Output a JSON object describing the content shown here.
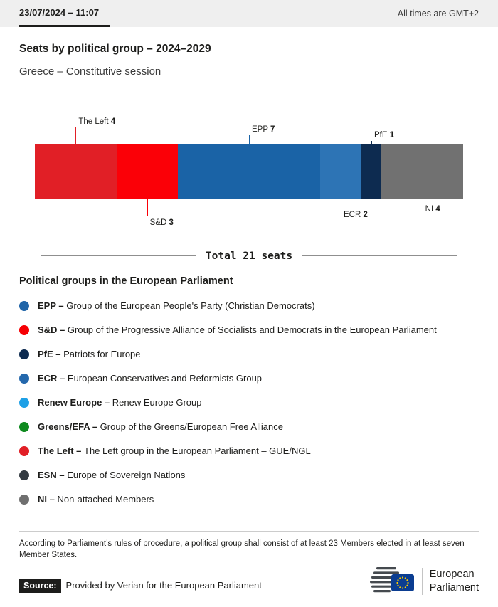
{
  "header": {
    "datetime": "23/07/2024 – 11:07",
    "timezone_note": "All times are GMT+2"
  },
  "title": "Seats by political group – 2024–2029",
  "subtitle": "Greece – Constitutive session",
  "chart_data": {
    "type": "bar",
    "orientation": "horizontal-stacked",
    "title": "Seats by political group – 2024–2029",
    "subtitle": "Greece – Constitutive session",
    "total_seats": 21,
    "total_label": "Total 21 seats",
    "segments": [
      {
        "name": "The Left",
        "seats": 4,
        "color": "#e11f26",
        "label_side": "above",
        "label_tier": 3
      },
      {
        "name": "S&D",
        "seats": 3,
        "color": "#fb0007",
        "label_side": "below",
        "label_tier": 3
      },
      {
        "name": "EPP",
        "seats": 7,
        "color": "#1a63a6",
        "label_side": "above",
        "label_tier": 2
      },
      {
        "name": "ECR",
        "seats": 2,
        "color": "#2d74b5",
        "label_side": "below",
        "label_tier": 2
      },
      {
        "name": "PfE",
        "seats": 1,
        "color": "#0d2b50",
        "label_side": "above",
        "label_tier": 1
      },
      {
        "name": "NI",
        "seats": 4,
        "color": "#717171",
        "label_side": "below",
        "label_tier": 1
      }
    ]
  },
  "legend": {
    "heading": "Political groups in the European Parliament",
    "items": [
      {
        "abbr": "EPP",
        "desc": "Group of the European People's Party (Christian Democrats)",
        "color": "#2065a8"
      },
      {
        "abbr": "S&D",
        "desc": "Group of the Progressive Alliance of Socialists and Democrats in the European Parliament",
        "color": "#f60004"
      },
      {
        "abbr": "PfE",
        "desc": "Patriots for Europe",
        "color": "#0d2b50"
      },
      {
        "abbr": "ECR",
        "desc": "European Conservatives and Reformists Group",
        "color": "#2468ac"
      },
      {
        "abbr": "Renew Europe",
        "desc": "Renew Europe Group",
        "color": "#1ea0e6"
      },
      {
        "abbr": "Greens/EFA",
        "desc": "Group of the Greens/European Free Alliance",
        "color": "#0e8a1f"
      },
      {
        "abbr": "The Left",
        "desc": "The Left group in the European Parliament – GUE/NGL",
        "color": "#e11f26"
      },
      {
        "abbr": "ESN",
        "desc": "Europe of Sovereign Nations",
        "color": "#333a41"
      },
      {
        "abbr": "NI",
        "desc": "Non-attached Members",
        "color": "#6f6f6f"
      }
    ]
  },
  "footnote": "According to Parliament’s rules of procedure, a political group shall consist of at least 23 Members elected in at least seven Member States.",
  "source": {
    "label": "Source:",
    "text": "Provided by Verian for the European Parliament"
  },
  "logo": {
    "line1": "European",
    "line2": "Parliament"
  }
}
